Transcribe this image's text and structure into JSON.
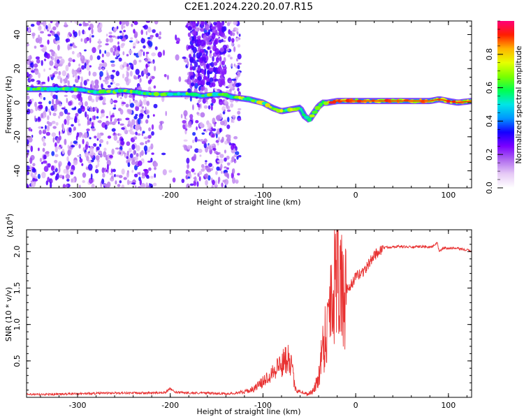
{
  "title": "C2E1.2024.220.20.07.R15",
  "chart_data": [
    {
      "type": "heatmap",
      "xlabel": "Height of straight line (km)",
      "ylabel": "Frequency (Hz)",
      "xlim": [
        -355,
        125
      ],
      "ylim": [
        -50,
        48
      ],
      "xticks": [
        -300,
        -200,
        -100,
        0,
        100
      ],
      "xtick_labels": [
        "-300",
        "-200",
        "-100",
        "0",
        "100"
      ],
      "yticks": [
        -40,
        -20,
        0,
        20,
        40
      ],
      "ytick_labels": [
        "-40",
        "-20",
        "0",
        "20",
        "40"
      ],
      "grid": false,
      "ridge": {
        "description_free": true,
        "x": [
          -350,
          -330,
          -300,
          -280,
          -250,
          -220,
          -200,
          -180,
          -165,
          -145,
          -130,
          -115,
          -100,
          -90,
          -80,
          -70,
          -60,
          -55,
          -50,
          -45,
          -40,
          -35,
          -30,
          -20,
          -10,
          0,
          20,
          40,
          60,
          80,
          90,
          100,
          110,
          125
        ],
        "y": [
          8,
          8,
          8,
          6,
          7,
          5,
          5,
          5,
          4,
          5,
          3,
          2,
          0,
          -3,
          -5,
          -4,
          -3,
          -8,
          -10,
          -6,
          -2,
          0,
          0,
          1,
          1,
          1,
          1,
          1,
          1,
          1,
          2,
          1,
          0,
          1
        ]
      },
      "colorbar": {
        "label": "Normalized spectral amplitude",
        "range": [
          0,
          1
        ],
        "ticks": [
          0.0,
          0.2,
          0.4,
          0.6,
          0.8
        ],
        "tick_labels": [
          "0.0",
          "0.2",
          "0.4",
          "0.6",
          "0.8"
        ],
        "colors": [
          "#ffffff",
          "#e7cbf6",
          "#b06cef",
          "#7a00ff",
          "#1400ff",
          "#0096ff",
          "#00e6e6",
          "#00ff50",
          "#7aff00",
          "#e6ff00",
          "#ffb400",
          "#ff1e00",
          "#ff0078"
        ]
      }
    },
    {
      "type": "line",
      "xlabel": "Height of straight line (km)",
      "ylabel": "SNR (10 * v/v)",
      "exponent_label": "(x10",
      "exponent_power": "4",
      "exponent_close": ")",
      "xlim": [
        -355,
        125
      ],
      "ylim": [
        0,
        2.3
      ],
      "xticks": [
        -300,
        -200,
        -100,
        0,
        100
      ],
      "xtick_labels": [
        "-300",
        "-200",
        "-100",
        "0",
        "100"
      ],
      "yticks": [
        0.5,
        1.0,
        1.5,
        2.0
      ],
      "ytick_labels": [
        "0.5",
        "1.0",
        "1.5",
        "2.0"
      ],
      "grid": false,
      "line_color": "#e83030",
      "series": [
        {
          "x": [
            -355,
            -330,
            -300,
            -260,
            -240,
            -220,
            -205,
            -200,
            -195,
            -180,
            -160,
            -140,
            -120,
            -110,
            -100,
            -90,
            -80,
            -72,
            -68,
            -65,
            -60,
            -55,
            -50,
            -45,
            -40,
            -35,
            -30,
            -27,
            -25,
            -22,
            -20,
            -18,
            -15,
            -12,
            -10,
            -8,
            -5,
            -2,
            0,
            5,
            10,
            15,
            20,
            25,
            30,
            40,
            50,
            60,
            70,
            80,
            85,
            88,
            90,
            95,
            100,
            110,
            120,
            125
          ],
          "y": [
            0.04,
            0.04,
            0.05,
            0.06,
            0.06,
            0.06,
            0.07,
            0.12,
            0.07,
            0.06,
            0.06,
            0.05,
            0.06,
            0.1,
            0.18,
            0.3,
            0.4,
            0.55,
            0.3,
            0.1,
            0.08,
            0.05,
            0.06,
            0.1,
            0.3,
            0.8,
            1.05,
            1.6,
            1.4,
            1.8,
            2.3,
            1.9,
            1.5,
            1.3,
            1.5,
            1.45,
            1.55,
            1.6,
            1.65,
            1.7,
            1.75,
            1.85,
            1.95,
            2.0,
            2.05,
            2.07,
            2.07,
            2.06,
            2.07,
            2.06,
            2.08,
            2.12,
            2.0,
            2.05,
            2.05,
            2.04,
            2.02,
            2.01
          ]
        }
      ]
    }
  ]
}
